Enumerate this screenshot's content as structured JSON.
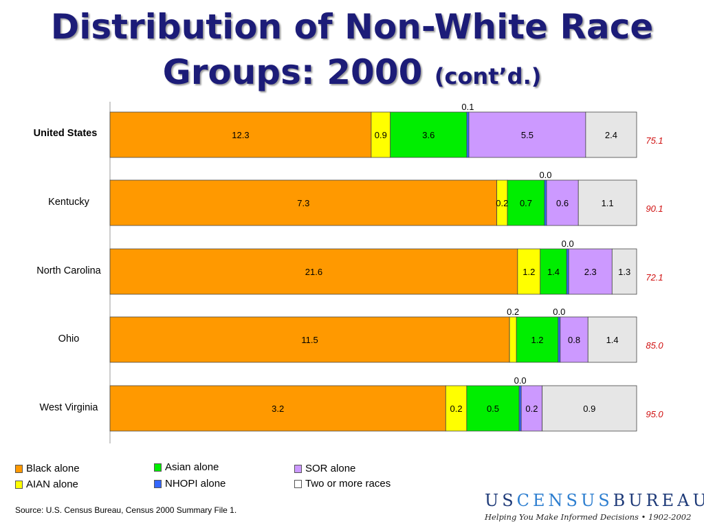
{
  "title": {
    "line1": "Distribution of Non-White Race",
    "line2": "Groups: 2000",
    "suffix": "(cont’d.)"
  },
  "chart_data": {
    "type": "bar",
    "orientation": "horizontal",
    "stacked": true,
    "title": "",
    "categories": [
      "United States",
      "Kentucky",
      "North Carolina",
      "Ohio",
      "West Virginia"
    ],
    "series": [
      {
        "name": "Black alone",
        "color": "#ff9900",
        "values": [
          12.3,
          7.3,
          21.6,
          11.5,
          3.2
        ]
      },
      {
        "name": "AIAN alone",
        "color": "#ffff00",
        "values": [
          0.9,
          0.2,
          1.2,
          0.2,
          0.2
        ]
      },
      {
        "name": "Asian alone",
        "color": "#00ee00",
        "values": [
          3.6,
          0.7,
          1.4,
          1.2,
          0.5
        ]
      },
      {
        "name": "NHOPI alone",
        "color": "#3366ff",
        "values": [
          0.1,
          0.0,
          0.0,
          0.0,
          0.0
        ]
      },
      {
        "name": "SOR alone",
        "color": "#cc99ff",
        "values": [
          5.5,
          0.6,
          2.3,
          0.8,
          0.2
        ]
      },
      {
        "name": "Two or more races",
        "color": "#e6e6e6",
        "values": [
          2.4,
          1.1,
          1.3,
          1.4,
          0.9
        ]
      }
    ],
    "white_alone": [
      "75.1",
      "90.1",
      "72.1",
      "85.0",
      "95.0"
    ],
    "grid": false,
    "legend_position": "bottom-left"
  },
  "legend": [
    {
      "label": "Black alone",
      "color": "#ff9900"
    },
    {
      "label": "AIAN alone",
      "color": "#ffff00"
    },
    {
      "label": "Asian alone",
      "color": "#00ee00"
    },
    {
      "label": "NHOPI alone",
      "color": "#3366ff"
    },
    {
      "label": "SOR alone",
      "color": "#cc99ff"
    },
    {
      "label": "Two or more races",
      "color": "#ffffff"
    }
  ],
  "source": "Source:  U.S. Census Bureau, Census 2000 Summary File 1.",
  "logo": {
    "name": "USCENSUSBUREAU",
    "tagline": "Helping You Make Informed Decisions • 1902-2002"
  }
}
